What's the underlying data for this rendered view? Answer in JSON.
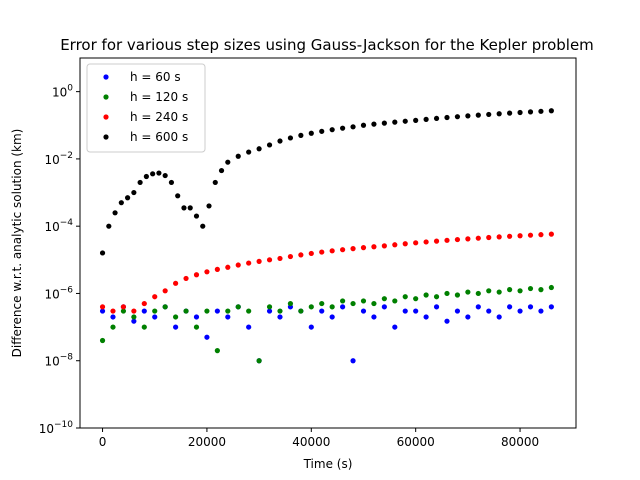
{
  "chart_data": {
    "type": "scatter",
    "title": "Error for various step sizes using Gauss-Jackson for the Kepler problem",
    "xlabel": "Time (s)",
    "ylabel": "Difference w.r.t. analytic solution (km)",
    "xlim": [
      -4320,
      90720
    ],
    "ylim": [
      1e-10,
      10.0
    ],
    "yscale": "log",
    "grid": false,
    "legend_position": "top-left",
    "xticks": [
      0,
      20000,
      40000,
      60000,
      80000
    ],
    "xtick_labels": [
      "0",
      "20000",
      "40000",
      "60000",
      "80000"
    ],
    "yticks": [
      1e-10,
      1e-08,
      1e-06,
      0.0001,
      0.01,
      1
    ],
    "ytick_labels": [
      {
        "base": "10",
        "exp": "−10"
      },
      {
        "base": "10",
        "exp": "−8"
      },
      {
        "base": "10",
        "exp": "−6"
      },
      {
        "base": "10",
        "exp": "−4"
      },
      {
        "base": "10",
        "exp": "−2"
      },
      {
        "base": "10",
        "exp": "0"
      }
    ],
    "series": [
      {
        "name": "h = 60 s",
        "color": "#0000ff",
        "x": [
          0,
          2000,
          4000,
          6000,
          8000,
          10000,
          12000,
          14000,
          16000,
          18000,
          20000,
          22000,
          24000,
          26000,
          28000,
          30000,
          32000,
          34000,
          36000,
          38000,
          40000,
          42000,
          44000,
          46000,
          48000,
          50000,
          52000,
          54000,
          56000,
          58000,
          60000,
          62000,
          64000,
          66000,
          68000,
          70000,
          72000,
          74000,
          76000,
          78000,
          80000,
          82000,
          84000,
          86000
        ],
        "y": [
          3e-07,
          2e-07,
          4e-07,
          1.5e-07,
          3e-07,
          2e-07,
          4e-07,
          1e-07,
          3e-07,
          2e-07,
          5e-08,
          3e-07,
          2e-07,
          4e-07,
          1e-07,
          1e-08,
          3e-07,
          2e-07,
          4e-07,
          3e-07,
          1e-07,
          3e-07,
          2e-07,
          4e-07,
          1e-08,
          3e-07,
          2e-07,
          4e-07,
          1e-07,
          3e-07,
          3e-07,
          2e-07,
          4e-07,
          1.5e-07,
          3e-07,
          2e-07,
          4e-07,
          3e-07,
          2e-07,
          4e-07,
          3e-07,
          4e-07,
          3e-07,
          4e-07
        ]
      },
      {
        "name": "h = 120 s",
        "color": "#008000",
        "x": [
          0,
          2000,
          4000,
          6000,
          8000,
          10000,
          12000,
          14000,
          16000,
          18000,
          20000,
          22000,
          24000,
          26000,
          28000,
          30000,
          32000,
          34000,
          36000,
          38000,
          40000,
          42000,
          44000,
          46000,
          48000,
          50000,
          52000,
          54000,
          56000,
          58000,
          60000,
          62000,
          64000,
          66000,
          68000,
          70000,
          72000,
          74000,
          76000,
          78000,
          80000,
          82000,
          84000,
          86000
        ],
        "y": [
          4e-08,
          1e-07,
          3e-07,
          2e-07,
          1e-07,
          3e-07,
          4e-07,
          2e-07,
          3e-07,
          1e-07,
          3e-07,
          2e-08,
          3e-07,
          4e-07,
          3e-07,
          1e-08,
          4e-07,
          3e-07,
          5e-07,
          3e-07,
          4e-07,
          5e-07,
          4e-07,
          6e-07,
          5e-07,
          6e-07,
          5e-07,
          7e-07,
          6e-07,
          8e-07,
          7e-07,
          9e-07,
          8e-07,
          1e-06,
          9e-07,
          1.1e-06,
          1e-06,
          1.2e-06,
          1.1e-06,
          1.3e-06,
          1.2e-06,
          1.4e-06,
          1.3e-06,
          1.5e-06
        ]
      },
      {
        "name": "h = 240 s",
        "color": "#ff0000",
        "x": [
          0,
          2000,
          4000,
          6000,
          8000,
          10000,
          12000,
          14000,
          16000,
          18000,
          20000,
          22000,
          24000,
          26000,
          28000,
          30000,
          32000,
          34000,
          36000,
          38000,
          40000,
          42000,
          44000,
          46000,
          48000,
          50000,
          52000,
          54000,
          56000,
          58000,
          60000,
          62000,
          64000,
          66000,
          68000,
          70000,
          72000,
          74000,
          76000,
          78000,
          80000,
          82000,
          84000,
          86000
        ],
        "y": [
          4e-07,
          3e-07,
          4e-07,
          3e-07,
          5e-07,
          8e-07,
          1.2e-06,
          2e-06,
          2.8e-06,
          3.6e-06,
          4.4e-06,
          5.2e-06,
          6e-06,
          7e-06,
          8e-06,
          9e-06,
          1e-05,
          1.1e-05,
          1.25e-05,
          1.4e-05,
          1.55e-05,
          1.7e-05,
          1.85e-05,
          2e-05,
          2.15e-05,
          2.3e-05,
          2.45e-05,
          2.6e-05,
          2.8e-05,
          3e-05,
          3.2e-05,
          3.4e-05,
          3.6e-05,
          3.8e-05,
          4e-05,
          4.2e-05,
          4.4e-05,
          4.6e-05,
          4.8e-05,
          5e-05,
          5.2e-05,
          5.4e-05,
          5.6e-05,
          5.8e-05
        ]
      },
      {
        "name": "h = 600 s",
        "color": "#000000",
        "x": [
          0,
          1200,
          2400,
          3600,
          4800,
          6000,
          7200,
          8400,
          9600,
          10800,
          12000,
          13200,
          14400,
          15600,
          16800,
          18000,
          19200,
          20400,
          21600,
          22800,
          24000,
          26000,
          28000,
          30000,
          32000,
          34000,
          36000,
          38000,
          40000,
          42000,
          44000,
          46000,
          48000,
          50000,
          52000,
          54000,
          56000,
          58000,
          60000,
          62000,
          64000,
          66000,
          68000,
          70000,
          72000,
          74000,
          76000,
          78000,
          80000,
          82000,
          84000,
          86000
        ],
        "y": [
          1.6e-05,
          0.0001,
          0.00025,
          0.0005,
          0.0007,
          0.001,
          0.002,
          0.003,
          0.0036,
          0.0038,
          0.0032,
          0.002,
          0.0008,
          0.00035,
          0.00035,
          0.0002,
          0.0001,
          0.0004,
          0.002,
          0.0045,
          0.008,
          0.012,
          0.016,
          0.02,
          0.026,
          0.034,
          0.042,
          0.05,
          0.058,
          0.066,
          0.074,
          0.082,
          0.09,
          0.1,
          0.108,
          0.116,
          0.124,
          0.132,
          0.14,
          0.15,
          0.16,
          0.17,
          0.18,
          0.19,
          0.2,
          0.21,
          0.22,
          0.23,
          0.24,
          0.25,
          0.26,
          0.27
        ]
      }
    ]
  }
}
